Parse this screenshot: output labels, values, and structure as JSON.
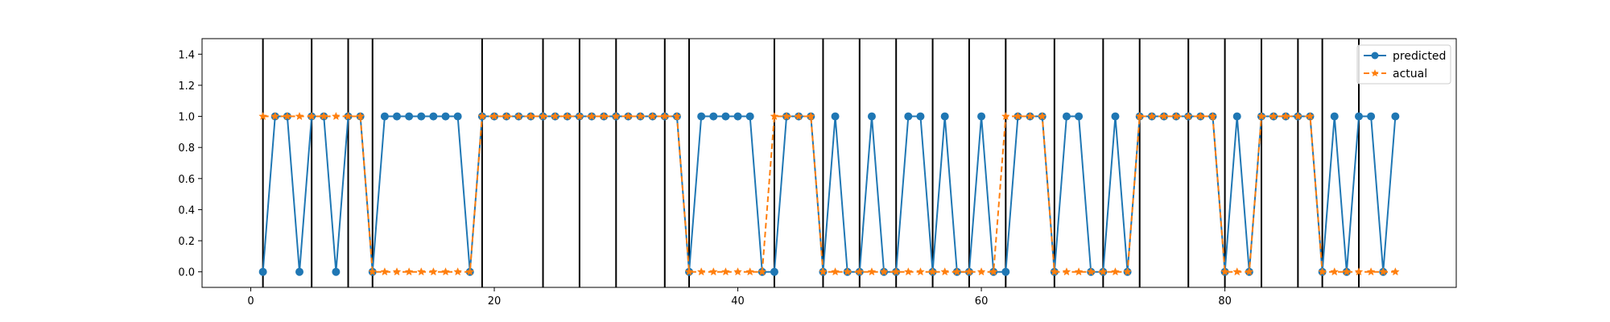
{
  "chart_data": {
    "type": "line",
    "title": "",
    "xlabel": "",
    "ylabel": "",
    "xlim": [
      -4,
      99
    ],
    "ylim": [
      -0.1,
      1.5
    ],
    "xticks": [
      0,
      20,
      40,
      60,
      80
    ],
    "yticks": [
      0.0,
      0.2,
      0.4,
      0.6,
      0.8,
      1.0,
      1.2,
      1.4
    ],
    "xtick_labels": [
      "0",
      "20",
      "40",
      "60",
      "80"
    ],
    "ytick_labels": [
      "0.0",
      "0.2",
      "0.4",
      "0.6",
      "0.8",
      "1.0",
      "1.2",
      "1.4"
    ],
    "grid": false,
    "legend_position": "top-right",
    "vertical_lines": [
      1,
      5,
      8,
      10,
      19,
      24,
      27,
      30,
      34,
      36,
      43,
      47,
      50,
      53,
      56,
      59,
      62,
      66,
      70,
      73,
      77,
      80,
      83,
      86,
      88,
      91
    ],
    "x": [
      1,
      2,
      3,
      4,
      5,
      6,
      7,
      8,
      9,
      10,
      11,
      12,
      13,
      14,
      15,
      16,
      17,
      18,
      19,
      20,
      21,
      22,
      23,
      24,
      25,
      26,
      27,
      28,
      29,
      30,
      31,
      32,
      33,
      34,
      35,
      36,
      37,
      38,
      39,
      40,
      41,
      42,
      43,
      44,
      45,
      46,
      47,
      48,
      49,
      50,
      51,
      52,
      53,
      54,
      55,
      56,
      57,
      58,
      59,
      60,
      61,
      62,
      63,
      64,
      65,
      66,
      67,
      68,
      69,
      70,
      71,
      72,
      73,
      74,
      75,
      76,
      77,
      78,
      79,
      80,
      81,
      82,
      83,
      84,
      85,
      86,
      87,
      88,
      89,
      90,
      91,
      92,
      93,
      94
    ],
    "series": [
      {
        "name": "predicted",
        "color": "#1f77b4",
        "line_style": "solid",
        "marker": "circle",
        "values": [
          0,
          1,
          1,
          0,
          1,
          1,
          0,
          1,
          1,
          0,
          1,
          1,
          1,
          1,
          1,
          1,
          1,
          0,
          1,
          1,
          1,
          1,
          1,
          1,
          1,
          1,
          1,
          1,
          1,
          1,
          1,
          1,
          1,
          1,
          1,
          0,
          1,
          1,
          1,
          1,
          1,
          0,
          0,
          1,
          1,
          1,
          0,
          1,
          0,
          0,
          1,
          0,
          0,
          1,
          1,
          0,
          1,
          0,
          0,
          1,
          0,
          0,
          1,
          1,
          1,
          0,
          1,
          1,
          0,
          0,
          1,
          0,
          1,
          1,
          1,
          1,
          1,
          1,
          1,
          0,
          1,
          0,
          1,
          1,
          1,
          1,
          1,
          0,
          1,
          0,
          1,
          1,
          0,
          1
        ]
      },
      {
        "name": "actual",
        "color": "#ff7f0e",
        "line_style": "dashed",
        "marker": "star",
        "values": [
          1,
          1,
          1,
          1,
          1,
          1,
          1,
          1,
          1,
          0,
          0,
          0,
          0,
          0,
          0,
          0,
          0,
          0,
          1,
          1,
          1,
          1,
          1,
          1,
          1,
          1,
          1,
          1,
          1,
          1,
          1,
          1,
          1,
          1,
          1,
          0,
          0,
          0,
          0,
          0,
          0,
          0,
          1,
          1,
          1,
          1,
          0,
          0,
          0,
          0,
          0,
          0,
          0,
          0,
          0,
          0,
          0,
          0,
          0,
          0,
          0,
          1,
          1,
          1,
          1,
          0,
          0,
          0,
          0,
          0,
          0,
          0,
          1,
          1,
          1,
          1,
          1,
          1,
          1,
          0,
          0,
          0,
          1,
          1,
          1,
          1,
          1,
          0,
          0,
          0,
          0,
          0,
          0,
          0
        ]
      }
    ]
  }
}
